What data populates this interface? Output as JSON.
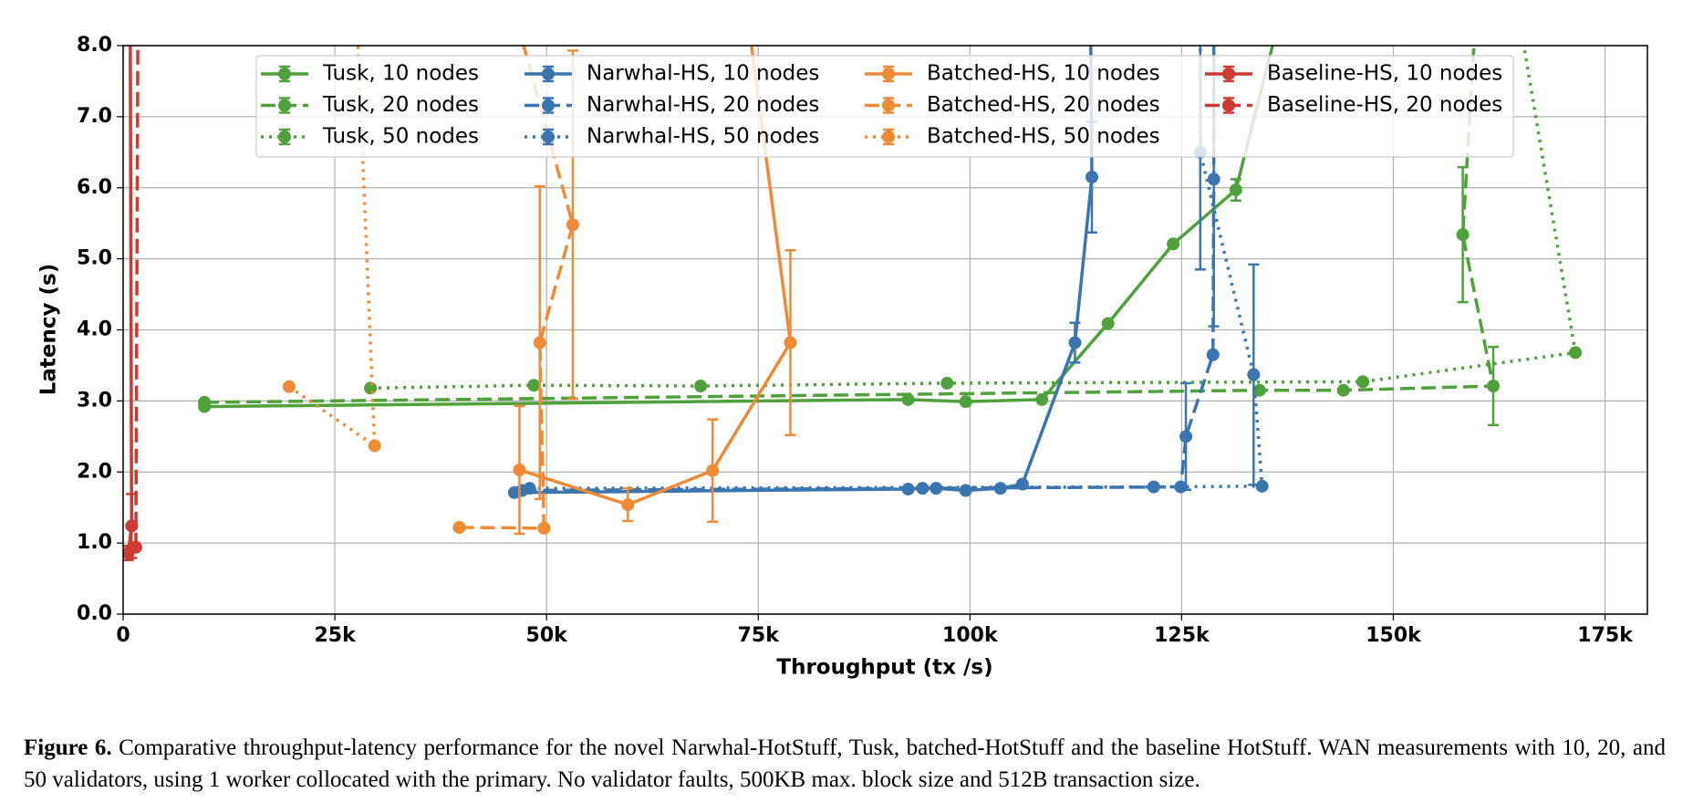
{
  "chart_data": {
    "type": "line",
    "xlabel": "Throughput (tx /s)",
    "ylabel": "Latency (s)",
    "xlim": [
      0,
      180000
    ],
    "ylim": [
      0,
      8
    ],
    "xticks": [
      0,
      {
        "value": 25000,
        "label": "25k"
      },
      {
        "value": 50000,
        "label": "50k"
      },
      {
        "value": 75000,
        "label": "75k"
      },
      {
        "value": 100000,
        "label": "100k"
      },
      {
        "value": 125000,
        "label": "125k"
      },
      {
        "value": 150000,
        "label": "150k"
      },
      {
        "value": 175000,
        "label": "175k"
      }
    ],
    "yticks": [
      {
        "value": 0,
        "label": "0.0"
      },
      {
        "value": 1,
        "label": "1.0"
      },
      {
        "value": 2,
        "label": "2.0"
      },
      {
        "value": 3,
        "label": "3.0"
      },
      {
        "value": 4,
        "label": "4.0"
      },
      {
        "value": 5,
        "label": "5.0"
      },
      {
        "value": 6,
        "label": "6.0"
      },
      {
        "value": 7,
        "label": "7.0"
      },
      {
        "value": 8,
        "label": "8.0"
      }
    ],
    "grid": true,
    "legend": "upper center",
    "legend_columns": 4,
    "series": [
      {
        "name": "Tusk, 10 nodes",
        "color": "#4fa23b",
        "style": "solid",
        "x": [
          9600,
          92700,
          99500,
          108500,
          116300,
          124000,
          131400,
          140000
        ],
        "values": [
          2.92,
          3.02,
          2.99,
          3.02,
          4.09,
          5.21,
          5.97,
          10
        ],
        "errors": [
          null,
          null,
          null,
          null,
          null,
          null,
          0.15,
          null
        ]
      },
      {
        "name": "Tusk, 20 nodes",
        "color": "#4fa23b",
        "style": "dashed",
        "x": [
          9600,
          134200,
          144100,
          161800,
          158200,
          160500
        ],
        "values": [
          2.98,
          3.15,
          3.15,
          3.21,
          5.34,
          10
        ],
        "errors": [
          null,
          null,
          null,
          0.55,
          0.95,
          null
        ]
      },
      {
        "name": "Tusk, 50 nodes",
        "color": "#4fa23b",
        "style": "dotted",
        "x": [
          29200,
          48500,
          68200,
          97300,
          146400,
          171500,
          164000
        ],
        "values": [
          3.18,
          3.22,
          3.21,
          3.25,
          3.27,
          3.68,
          9
        ],
        "errors": [
          null,
          null,
          null,
          null,
          null,
          null,
          null
        ]
      },
      {
        "name": "Narwhal-HS, 10 nodes",
        "color": "#3a75b0",
        "style": "solid",
        "x": [
          46200,
          92700,
          94400,
          96000,
          99500,
          103600,
          106200,
          112400,
          114400,
          114200
        ],
        "values": [
          1.71,
          1.76,
          1.77,
          1.77,
          1.74,
          1.77,
          1.83,
          3.82,
          6.15,
          9
        ],
        "errors": [
          null,
          null,
          null,
          null,
          null,
          null,
          null,
          0.28,
          0.78,
          null
        ]
      },
      {
        "name": "Narwhal-HS, 20 nodes",
        "color": "#3a75b0",
        "style": "dashed",
        "x": [
          47100,
          124900,
          125500,
          128700,
          128800,
          128800
        ],
        "values": [
          1.74,
          1.79,
          2.5,
          3.65,
          6.12,
          9
        ],
        "errors": [
          null,
          null,
          0.75,
          null,
          2.07,
          null
        ]
      },
      {
        "name": "Narwhal-HS, 50 nodes",
        "color": "#3a75b0",
        "style": "dotted",
        "x": [
          48000,
          121700,
          134500,
          133500,
          127200,
          127200
        ],
        "values": [
          1.77,
          1.79,
          1.8,
          3.37,
          6.5,
          9
        ],
        "errors": [
          null,
          null,
          null,
          1.55,
          1.65,
          null
        ]
      },
      {
        "name": "Batched-HS, 10 nodes",
        "color": "#ef8a36",
        "style": "solid",
        "x": [
          46800,
          59600,
          69600,
          78800,
          72000
        ],
        "values": [
          2.03,
          1.54,
          2.02,
          3.82,
          10
        ],
        "errors": [
          0.9,
          0.23,
          0.72,
          1.3,
          null
        ]
      },
      {
        "name": "Batched-HS, 20 nodes",
        "color": "#ef8a36",
        "style": "dashed",
        "x": [
          39700,
          49700,
          49200,
          53100,
          45000
        ],
        "values": [
          1.22,
          1.21,
          3.82,
          5.48,
          9
        ],
        "errors": [
          null,
          null,
          2.2,
          2.45,
          null
        ]
      },
      {
        "name": "Batched-HS, 50 nodes",
        "color": "#ef8a36",
        "style": "dotted",
        "x": [
          19600,
          29700,
          27400
        ],
        "values": [
          3.2,
          2.37,
          9
        ],
        "errors": [
          null,
          null,
          null
        ]
      },
      {
        "name": "Baseline-HS, 10 nodes",
        "color": "#cc3a33",
        "style": "solid",
        "x": [
          600,
          1000,
          800
        ],
        "values": [
          0.86,
          1.24,
          10
        ],
        "errors": [
          0.1,
          0.45,
          null
        ]
      },
      {
        "name": "Baseline-HS, 20 nodes",
        "color": "#cc3a33",
        "style": "dashed",
        "x": [
          1500,
          1800
        ],
        "values": [
          0.94,
          10
        ],
        "errors": [
          null,
          null
        ]
      }
    ],
    "caption": {
      "label": "Figure 6.",
      "text": "Comparative throughput-latency performance for the novel Narwhal-HotStuff, Tusk, batched-HotStuff and the baseline HotStuff. WAN measurements with 10, 20, and 50 validators, using 1 worker collocated with the primary. No validator faults, 500KB max. block size and 512B transaction size."
    }
  }
}
